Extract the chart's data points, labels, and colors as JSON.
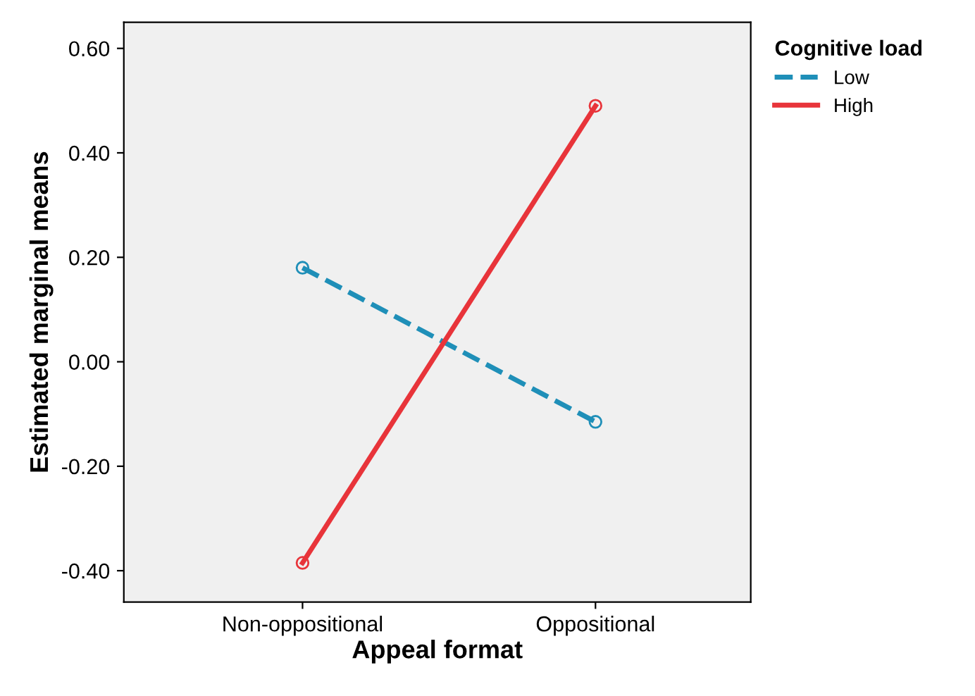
{
  "chart_data": {
    "type": "line",
    "xlabel": "Appeal format",
    "ylabel": "Estimated marginal means",
    "legend_title": "Cognitive load",
    "categories": [
      "Non-oppositional",
      "Oppositional"
    ],
    "series": [
      {
        "name": "Low",
        "color": "#1f8fb8",
        "values": [
          0.18,
          -0.115
        ],
        "line_style": "dashed"
      },
      {
        "name": "High",
        "color": "#e8343a",
        "values": [
          -0.385,
          0.49
        ],
        "line_style": "solid"
      }
    ],
    "ylim": [
      -0.46,
      0.65
    ],
    "yticks": [
      {
        "value": -0.4,
        "label": "-0.40"
      },
      {
        "value": -0.2,
        "label": "-0.20"
      },
      {
        "value": 0,
        "label": "0.00"
      },
      {
        "value": 0.2,
        "label": "0.20"
      },
      {
        "value": 0.4,
        "label": "0.40"
      },
      {
        "value": 0.6,
        "label": "0.60"
      }
    ],
    "marker": "circle",
    "legend": "top right",
    "grid": false
  }
}
